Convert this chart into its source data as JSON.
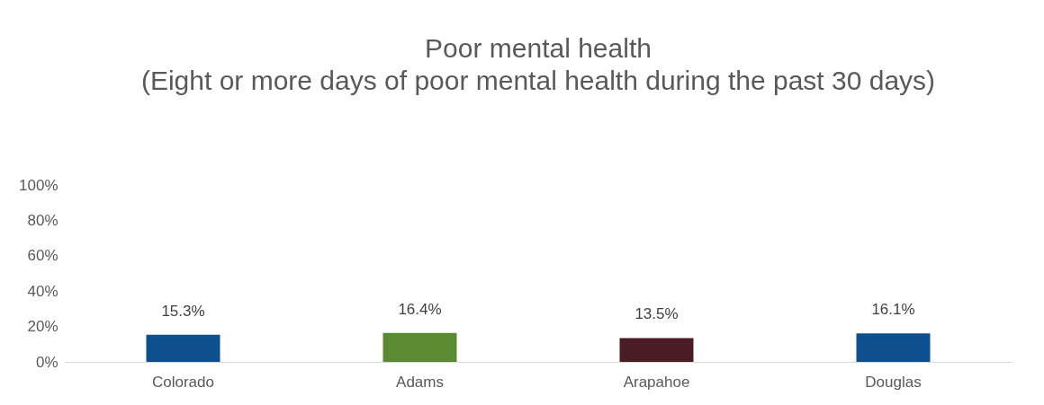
{
  "chart_data": {
    "type": "bar",
    "title": "Poor mental health",
    "subtitle": "(Eight or more days of poor mental health during the past 30 days)",
    "categories": [
      "Colorado",
      "Adams",
      "Arapahoe",
      "Douglas"
    ],
    "values": [
      15.3,
      16.4,
      13.5,
      16.1
    ],
    "colors": [
      "#0d4f8f",
      "#5a8a32",
      "#4a1c24",
      "#0d4f8f"
    ],
    "value_labels": [
      "15.3%",
      "16.4%",
      "13.5%",
      "16.1%"
    ],
    "ylim": [
      0,
      100
    ],
    "yticks": [
      {
        "value": 0,
        "label": "0%"
      },
      {
        "value": 20,
        "label": "20%"
      },
      {
        "value": 40,
        "label": "40%"
      },
      {
        "value": 60,
        "label": "60%"
      },
      {
        "value": 80,
        "label": "80%"
      },
      {
        "value": 100,
        "label": "100%"
      }
    ],
    "grid": false
  }
}
